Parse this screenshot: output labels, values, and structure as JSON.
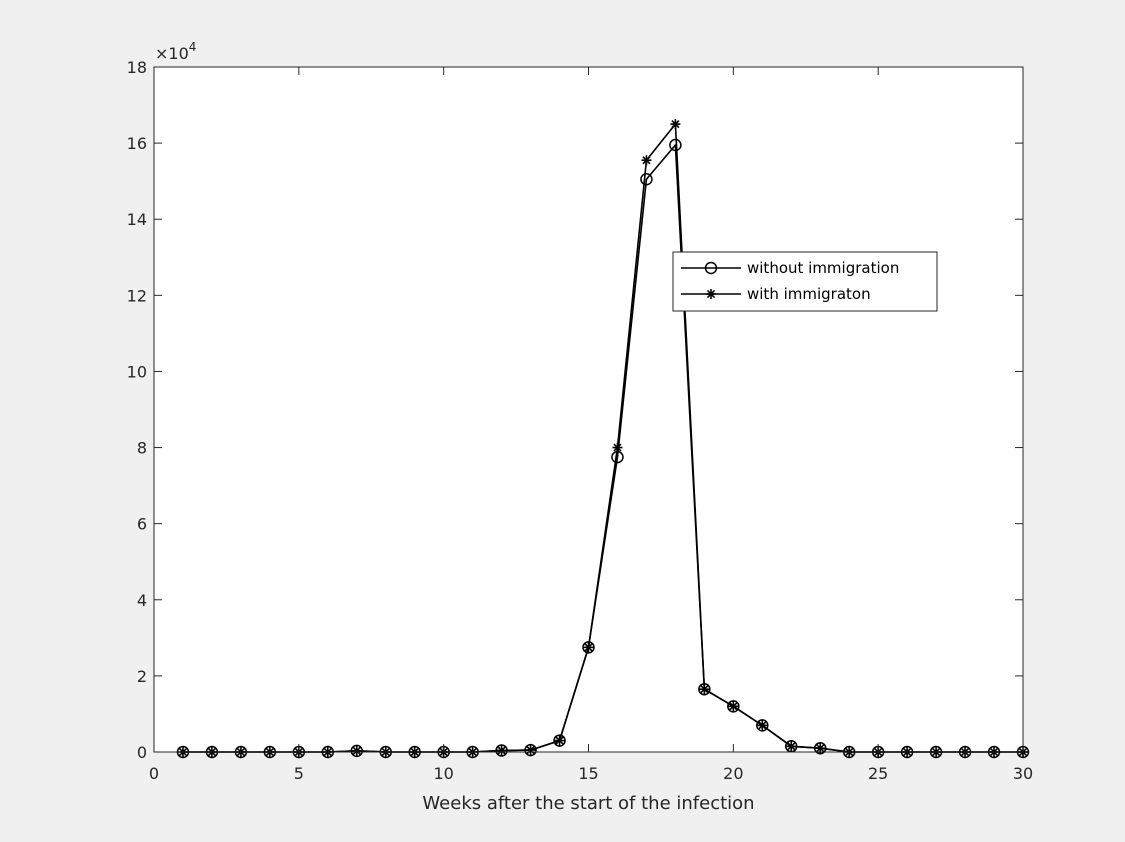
{
  "chart_data": {
    "type": "line",
    "title": "",
    "xlabel": "Weeks after the start of the infection",
    "ylabel": "",
    "xlim": [
      0,
      30
    ],
    "ylim": [
      0,
      180000
    ],
    "xticks": [
      0,
      5,
      10,
      15,
      20,
      25,
      30
    ],
    "xtick_labels": [
      "0",
      "5",
      "10",
      "15",
      "20",
      "25",
      "30"
    ],
    "yticks": [
      0,
      20000,
      40000,
      60000,
      80000,
      100000,
      120000,
      140000,
      160000,
      180000
    ],
    "ytick_labels": [
      "0",
      "2",
      "4",
      "6",
      "8",
      "10",
      "12",
      "14",
      "16",
      "18"
    ],
    "y_exponent_base": "×10",
    "y_exponent_power": "4",
    "grid": false,
    "legend_position": "upper-right (inside, near peak)",
    "x": [
      1,
      2,
      3,
      4,
      5,
      6,
      7,
      8,
      9,
      10,
      11,
      12,
      13,
      14,
      15,
      16,
      17,
      18,
      19,
      20,
      21,
      22,
      23,
      24,
      25,
      26,
      27,
      28,
      29,
      30
    ],
    "series": [
      {
        "name": "without immigration",
        "marker": "circle",
        "color": "#000000",
        "values": [
          0,
          0,
          0,
          0,
          0,
          0,
          300,
          0,
          0,
          0,
          0,
          400,
          500,
          3000,
          27500,
          77500,
          150500,
          159500,
          16500,
          12000,
          7000,
          1500,
          1000,
          0,
          0,
          0,
          0,
          0,
          0,
          0
        ]
      },
      {
        "name": "with immigraton",
        "marker": "asterisk",
        "color": "#000000",
        "values": [
          0,
          0,
          0,
          0,
          0,
          0,
          300,
          0,
          0,
          0,
          0,
          400,
          500,
          3000,
          27500,
          80000,
          155500,
          165000,
          16500,
          12000,
          7000,
          1500,
          1000,
          0,
          0,
          0,
          0,
          0,
          0,
          0
        ]
      }
    ]
  }
}
